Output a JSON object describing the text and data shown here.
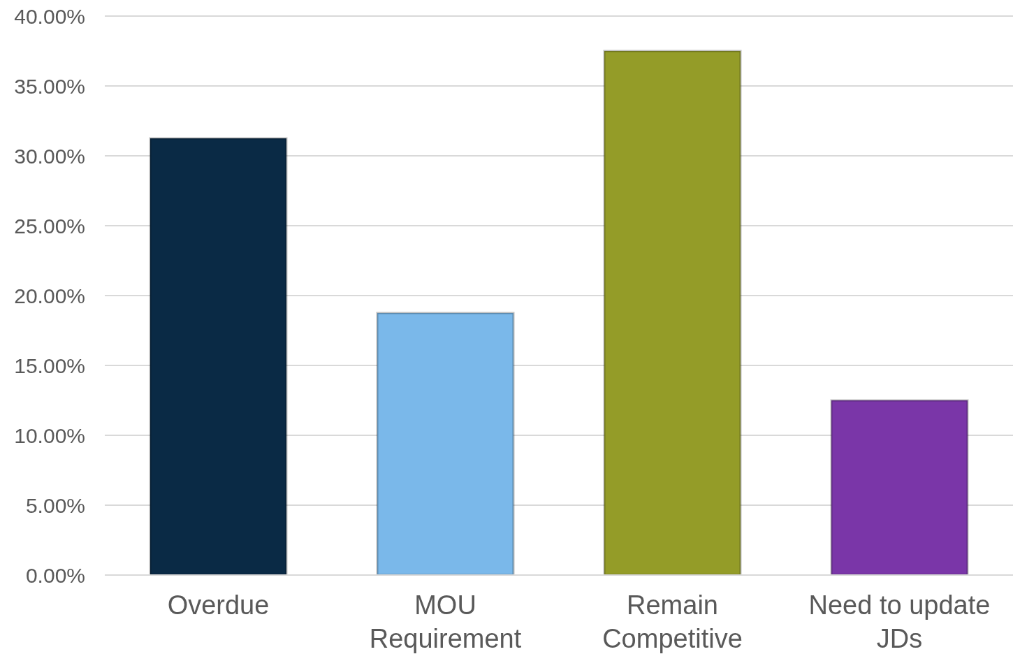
{
  "chart_data": {
    "type": "bar",
    "categories": [
      "Overdue",
      "MOU Requirement",
      "Remain Competitive",
      "Need to update JDs"
    ],
    "values": [
      31.25,
      18.75,
      37.5,
      12.5
    ],
    "colors": [
      "#0a2a45",
      "#7ab8ea",
      "#949c28",
      "#7a36a8"
    ],
    "ylim": [
      0,
      40
    ],
    "yticks": [
      {
        "value": 0,
        "label": "0.00%"
      },
      {
        "value": 5,
        "label": "5.00%"
      },
      {
        "value": 10,
        "label": "10.00%"
      },
      {
        "value": 15,
        "label": "15.00%"
      },
      {
        "value": 20,
        "label": "20.00%"
      },
      {
        "value": 25,
        "label": "25.00%"
      },
      {
        "value": 30,
        "label": "30.00%"
      },
      {
        "value": 35,
        "label": "35.00%"
      },
      {
        "value": 40,
        "label": "40.00%"
      }
    ],
    "grid": "y",
    "legend": false
  }
}
